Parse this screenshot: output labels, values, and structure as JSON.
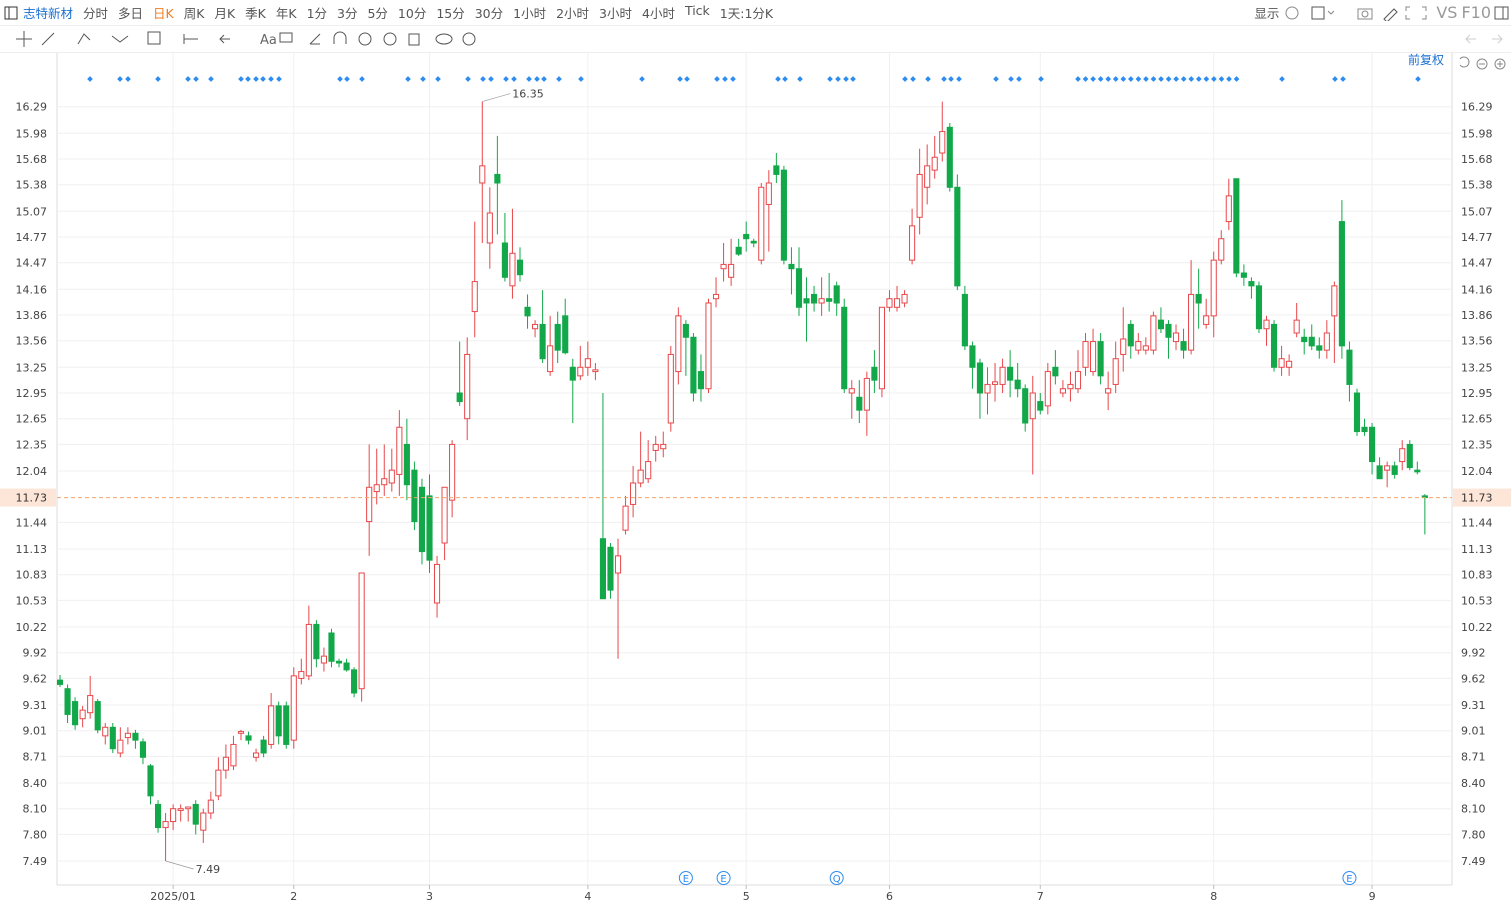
{
  "toolbar": {
    "stock": "志特新材",
    "periods": [
      "分时",
      "多日",
      "日K",
      "周K",
      "月K",
      "季K",
      "年K",
      "1分",
      "3分",
      "5分",
      "10分",
      "15分",
      "30分",
      "1小时",
      "2小时",
      "3小时",
      "4小时",
      "Tick",
      "1天:1分K"
    ],
    "active": "日K",
    "display": "显示",
    "vs": "VS",
    "f10": "F10",
    "text_tool": "Aa"
  },
  "chart_data": {
    "type": "candlestick",
    "adjust_label": "前复权",
    "up_color": "#e8474a",
    "down_color": "#12a84a",
    "ohlc": [
      [
        9.6,
        9.66,
        9.52,
        9.55
      ],
      [
        9.5,
        9.55,
        9.1,
        9.2
      ],
      [
        9.35,
        9.4,
        9.02,
        9.08
      ],
      [
        9.15,
        9.3,
        9.05,
        9.25
      ],
      [
        9.22,
        9.65,
        9.15,
        9.42
      ],
      [
        9.35,
        9.38,
        8.98,
        9.02
      ],
      [
        8.95,
        9.1,
        8.85,
        9.05
      ],
      [
        9.05,
        9.1,
        8.75,
        8.8
      ],
      [
        8.75,
        9.05,
        8.7,
        8.9
      ],
      [
        8.93,
        9.05,
        8.85,
        8.98
      ],
      [
        8.98,
        9.02,
        8.8,
        8.9
      ],
      [
        8.88,
        8.92,
        8.62,
        8.7
      ],
      [
        8.6,
        8.62,
        8.15,
        8.25
      ],
      [
        8.15,
        8.2,
        7.82,
        7.88
      ],
      [
        7.88,
        8.05,
        7.49,
        7.95
      ],
      [
        7.95,
        8.15,
        7.85,
        8.1
      ],
      [
        8.08,
        8.15,
        7.95,
        8.1
      ],
      [
        8.1,
        8.12,
        7.95,
        8.12
      ],
      [
        8.15,
        8.2,
        7.8,
        7.92
      ],
      [
        7.85,
        8.1,
        7.7,
        8.05
      ],
      [
        8.05,
        8.3,
        7.98,
        8.2
      ],
      [
        8.25,
        8.7,
        8.2,
        8.55
      ],
      [
        8.55,
        8.85,
        8.45,
        8.7
      ],
      [
        8.6,
        8.95,
        8.55,
        8.85
      ],
      [
        8.98,
        9.02,
        8.9,
        9.0
      ],
      [
        8.95,
        9.0,
        8.85,
        8.9
      ],
      [
        8.7,
        8.8,
        8.65,
        8.75
      ],
      [
        8.9,
        8.95,
        8.7,
        8.75
      ],
      [
        8.85,
        9.45,
        8.8,
        9.3
      ],
      [
        9.3,
        9.35,
        8.85,
        8.95
      ],
      [
        9.3,
        9.35,
        8.8,
        8.85
      ],
      [
        8.9,
        9.75,
        8.8,
        9.65
      ],
      [
        9.62,
        9.85,
        9.55,
        9.7
      ],
      [
        9.65,
        10.47,
        9.6,
        10.25
      ],
      [
        10.25,
        10.3,
        9.75,
        9.85
      ],
      [
        9.8,
        9.98,
        9.7,
        9.88
      ],
      [
        10.15,
        10.2,
        9.75,
        9.82
      ],
      [
        9.82,
        9.85,
        9.75,
        9.8
      ],
      [
        9.8,
        9.85,
        9.7,
        9.72
      ],
      [
        9.72,
        9.75,
        9.4,
        9.45
      ],
      [
        9.5,
        10.85,
        9.35,
        10.85
      ],
      [
        11.45,
        12.35,
        11.05,
        11.85
      ],
      [
        11.8,
        12.3,
        11.65,
        11.88
      ],
      [
        11.88,
        12.35,
        11.75,
        11.95
      ],
      [
        11.9,
        12.3,
        11.8,
        12.05
      ],
      [
        12.0,
        12.75,
        11.75,
        12.55
      ],
      [
        12.35,
        12.65,
        11.7,
        11.88
      ],
      [
        12.05,
        12.15,
        11.35,
        11.45
      ],
      [
        11.85,
        11.95,
        10.95,
        11.1
      ],
      [
        11.75,
        12.0,
        10.85,
        11.0
      ],
      [
        10.5,
        11.05,
        10.33,
        10.95
      ],
      [
        11.2,
        11.85,
        11.0,
        11.85
      ],
      [
        11.7,
        12.4,
        11.5,
        12.35
      ],
      [
        12.95,
        13.55,
        12.8,
        12.85
      ],
      [
        12.65,
        13.6,
        12.4,
        13.4
      ],
      [
        13.9,
        14.95,
        13.6,
        14.25
      ],
      [
        15.4,
        16.35,
        14.7,
        15.6
      ],
      [
        14.7,
        15.35,
        14.4,
        15.05
      ],
      [
        15.5,
        15.95,
        14.8,
        15.4
      ],
      [
        14.7,
        15.05,
        14.25,
        14.3
      ],
      [
        14.2,
        15.1,
        14.05,
        14.58
      ],
      [
        14.5,
        14.65,
        14.25,
        14.33
      ],
      [
        13.95,
        14.1,
        13.7,
        13.85
      ],
      [
        13.7,
        13.8,
        13.6,
        13.75
      ],
      [
        13.75,
        14.15,
        13.3,
        13.35
      ],
      [
        13.2,
        13.85,
        13.15,
        13.5
      ],
      [
        13.75,
        13.9,
        13.3,
        13.45
      ],
      [
        13.85,
        14.05,
        13.4,
        13.42
      ],
      [
        13.25,
        13.35,
        12.6,
        13.1
      ],
      [
        13.15,
        13.5,
        13.1,
        13.25
      ],
      [
        13.25,
        13.55,
        13.15,
        13.35
      ],
      [
        13.2,
        13.3,
        13.1,
        13.22
      ],
      [
        11.25,
        12.95,
        10.55,
        10.55
      ],
      [
        11.15,
        11.2,
        10.55,
        10.65
      ],
      [
        10.85,
        11.25,
        9.85,
        11.05
      ],
      [
        11.35,
        11.75,
        11.3,
        11.63
      ],
      [
        11.65,
        12.1,
        11.5,
        11.9
      ],
      [
        11.9,
        12.5,
        11.85,
        12.05
      ],
      [
        11.95,
        12.4,
        11.9,
        12.15
      ],
      [
        12.28,
        12.45,
        12.15,
        12.35
      ],
      [
        12.3,
        12.5,
        12.2,
        12.35
      ],
      [
        12.6,
        13.5,
        12.5,
        13.4
      ],
      [
        13.2,
        13.95,
        13.05,
        13.85
      ],
      [
        13.75,
        13.8,
        13.15,
        13.6
      ],
      [
        13.6,
        13.65,
        12.85,
        12.95
      ],
      [
        13.2,
        13.4,
        12.85,
        13.0
      ],
      [
        13.0,
        14.05,
        12.95,
        14.0
      ],
      [
        14.05,
        14.3,
        13.95,
        14.1
      ],
      [
        14.4,
        14.7,
        14.25,
        14.45
      ],
      [
        14.3,
        14.75,
        14.2,
        14.45
      ],
      [
        14.65,
        14.75,
        14.55,
        14.57
      ],
      [
        14.8,
        14.95,
        14.6,
        14.75
      ],
      [
        14.72,
        14.75,
        14.65,
        14.7
      ],
      [
        14.5,
        15.4,
        14.45,
        15.35
      ],
      [
        15.15,
        15.55,
        14.6,
        15.4
      ],
      [
        15.6,
        15.75,
        15.4,
        15.5
      ],
      [
        15.55,
        15.6,
        14.45,
        14.5
      ],
      [
        14.45,
        14.65,
        14.1,
        14.4
      ],
      [
        14.4,
        14.65,
        13.85,
        13.95
      ],
      [
        14.05,
        14.3,
        13.55,
        14.0
      ],
      [
        14.1,
        14.2,
        13.9,
        14.0
      ],
      [
        14.0,
        14.3,
        13.85,
        14.05
      ],
      [
        14.05,
        14.35,
        13.9,
        14.02
      ],
      [
        14.2,
        14.25,
        13.85,
        14.0
      ],
      [
        13.95,
        14.05,
        12.95,
        13.0
      ],
      [
        12.95,
        13.1,
        12.65,
        13.0
      ],
      [
        12.9,
        13.1,
        12.6,
        12.75
      ],
      [
        12.75,
        13.2,
        12.45,
        13.12
      ],
      [
        13.25,
        13.45,
        12.95,
        13.1
      ],
      [
        13.0,
        13.95,
        12.9,
        13.95
      ],
      [
        13.95,
        14.15,
        13.9,
        14.05
      ],
      [
        13.95,
        14.2,
        13.9,
        14.05
      ],
      [
        14.0,
        14.15,
        13.95,
        14.1
      ],
      [
        14.5,
        15.1,
        14.45,
        14.9
      ],
      [
        15.0,
        15.8,
        14.8,
        15.5
      ],
      [
        15.35,
        15.85,
        15.15,
        15.6
      ],
      [
        15.55,
        15.95,
        15.45,
        15.7
      ],
      [
        15.75,
        16.35,
        15.65,
        16.0
      ],
      [
        16.05,
        16.1,
        15.3,
        15.35
      ],
      [
        15.35,
        15.5,
        14.15,
        14.2
      ],
      [
        14.1,
        14.2,
        13.45,
        13.5
      ],
      [
        13.5,
        13.55,
        13.0,
        13.25
      ],
      [
        13.3,
        13.35,
        12.65,
        12.95
      ],
      [
        12.95,
        13.25,
        12.7,
        13.05
      ],
      [
        13.05,
        13.3,
        12.85,
        13.08
      ],
      [
        13.05,
        13.35,
        12.95,
        13.25
      ],
      [
        13.25,
        13.45,
        12.9,
        13.1
      ],
      [
        13.1,
        13.3,
        12.9,
        13.0
      ],
      [
        13.0,
        13.05,
        12.5,
        12.6
      ],
      [
        12.65,
        13.15,
        12.0,
        12.95
      ],
      [
        12.85,
        12.95,
        12.7,
        12.75
      ],
      [
        12.8,
        13.3,
        12.7,
        13.2
      ],
      [
        13.25,
        13.45,
        13.05,
        13.15
      ],
      [
        12.95,
        13.1,
        12.9,
        13.0
      ],
      [
        13.0,
        13.2,
        12.85,
        13.05
      ],
      [
        13.0,
        13.45,
        12.95,
        13.2
      ],
      [
        13.25,
        13.65,
        13.15,
        13.55
      ],
      [
        13.2,
        13.7,
        13.15,
        13.55
      ],
      [
        13.55,
        13.65,
        13.05,
        13.15
      ],
      [
        12.95,
        13.2,
        12.75,
        13.0
      ],
      [
        13.05,
        13.55,
        12.95,
        13.35
      ],
      [
        13.4,
        13.95,
        13.2,
        13.58
      ],
      [
        13.75,
        13.8,
        13.35,
        13.5
      ],
      [
        13.45,
        13.65,
        13.4,
        13.55
      ],
      [
        13.45,
        13.6,
        13.4,
        13.5
      ],
      [
        13.45,
        13.9,
        13.4,
        13.85
      ],
      [
        13.8,
        13.95,
        13.65,
        13.7
      ],
      [
        13.75,
        13.8,
        13.35,
        13.6
      ],
      [
        13.55,
        13.75,
        13.45,
        13.65
      ],
      [
        13.55,
        13.7,
        13.35,
        13.45
      ],
      [
        13.45,
        14.5,
        13.4,
        14.1
      ],
      [
        14.1,
        14.4,
        13.7,
        14.0
      ],
      [
        13.75,
        14.05,
        13.7,
        13.85
      ],
      [
        13.85,
        14.6,
        13.6,
        14.5
      ],
      [
        14.5,
        14.85,
        14.45,
        14.75
      ],
      [
        14.95,
        15.45,
        14.85,
        15.25
      ],
      [
        15.45,
        15.45,
        14.3,
        14.35
      ],
      [
        14.35,
        14.45,
        14.2,
        14.3
      ],
      [
        14.25,
        14.3,
        14.05,
        14.2
      ],
      [
        14.2,
        14.25,
        13.65,
        13.7
      ],
      [
        13.7,
        13.85,
        13.5,
        13.8
      ],
      [
        13.75,
        13.8,
        13.2,
        13.25
      ],
      [
        13.25,
        13.5,
        13.15,
        13.35
      ],
      [
        13.25,
        13.4,
        13.15,
        13.32
      ],
      [
        13.65,
        14.0,
        13.6,
        13.8
      ],
      [
        13.6,
        13.7,
        13.4,
        13.55
      ],
      [
        13.6,
        13.75,
        13.45,
        13.5
      ],
      [
        13.5,
        13.6,
        13.35,
        13.45
      ],
      [
        13.45,
        13.8,
        13.35,
        13.65
      ],
      [
        13.85,
        14.25,
        13.3,
        14.2
      ],
      [
        14.95,
        15.2,
        13.35,
        13.5
      ],
      [
        13.45,
        13.55,
        12.85,
        13.05
      ],
      [
        12.95,
        13.0,
        12.45,
        12.5
      ],
      [
        12.55,
        12.65,
        12.45,
        12.5
      ],
      [
        12.55,
        12.6,
        12.0,
        12.15
      ],
      [
        12.1,
        12.2,
        11.95,
        11.95
      ],
      [
        12.05,
        12.15,
        11.85,
        12.1
      ],
      [
        12.1,
        12.15,
        11.95,
        12.0
      ],
      [
        12.15,
        12.4,
        12.05,
        12.3
      ],
      [
        12.35,
        12.4,
        12.05,
        12.08
      ],
      [
        12.05,
        12.15,
        12.0,
        12.03
      ],
      [
        11.75,
        11.77,
        11.3,
        11.73
      ]
    ],
    "xlim": [
      -0.4,
      184.6
    ],
    "xticks": [
      {
        "value": 15,
        "label": "2025/01"
      },
      {
        "value": 31,
        "label": "2"
      },
      {
        "value": 49,
        "label": "3"
      },
      {
        "value": 70,
        "label": "4"
      },
      {
        "value": 91,
        "label": "5"
      },
      {
        "value": 110,
        "label": "6"
      },
      {
        "value": 130,
        "label": "7"
      },
      {
        "value": 153,
        "label": "8"
      },
      {
        "value": 174,
        "label": "9"
      }
    ],
    "ylim": [
      7.21,
      16.66
    ],
    "yticks": [
      16.29,
      15.98,
      15.68,
      15.38,
      15.07,
      14.77,
      14.47,
      14.16,
      13.86,
      13.56,
      13.25,
      12.95,
      12.65,
      12.35,
      12.04,
      11.44,
      11.13,
      10.83,
      10.53,
      10.22,
      9.92,
      9.62,
      9.31,
      9.01,
      8.71,
      {
        "value": 8.4,
        "label": "8.40"
      },
      {
        "value": 8.1,
        "label": "8.10"
      },
      {
        "value": 7.8,
        "label": "7.80"
      },
      7.49
    ],
    "grid": true,
    "last_price": 11.73,
    "annotations": [
      {
        "x": 56,
        "value": 16.35
      },
      {
        "x": 14,
        "value": 7.49
      }
    ],
    "events": [
      {
        "x": 83,
        "label": "E"
      },
      {
        "x": 88,
        "label": "E"
      },
      {
        "x": 103,
        "label": "Q"
      },
      {
        "x": 171,
        "label": "E"
      }
    ]
  }
}
